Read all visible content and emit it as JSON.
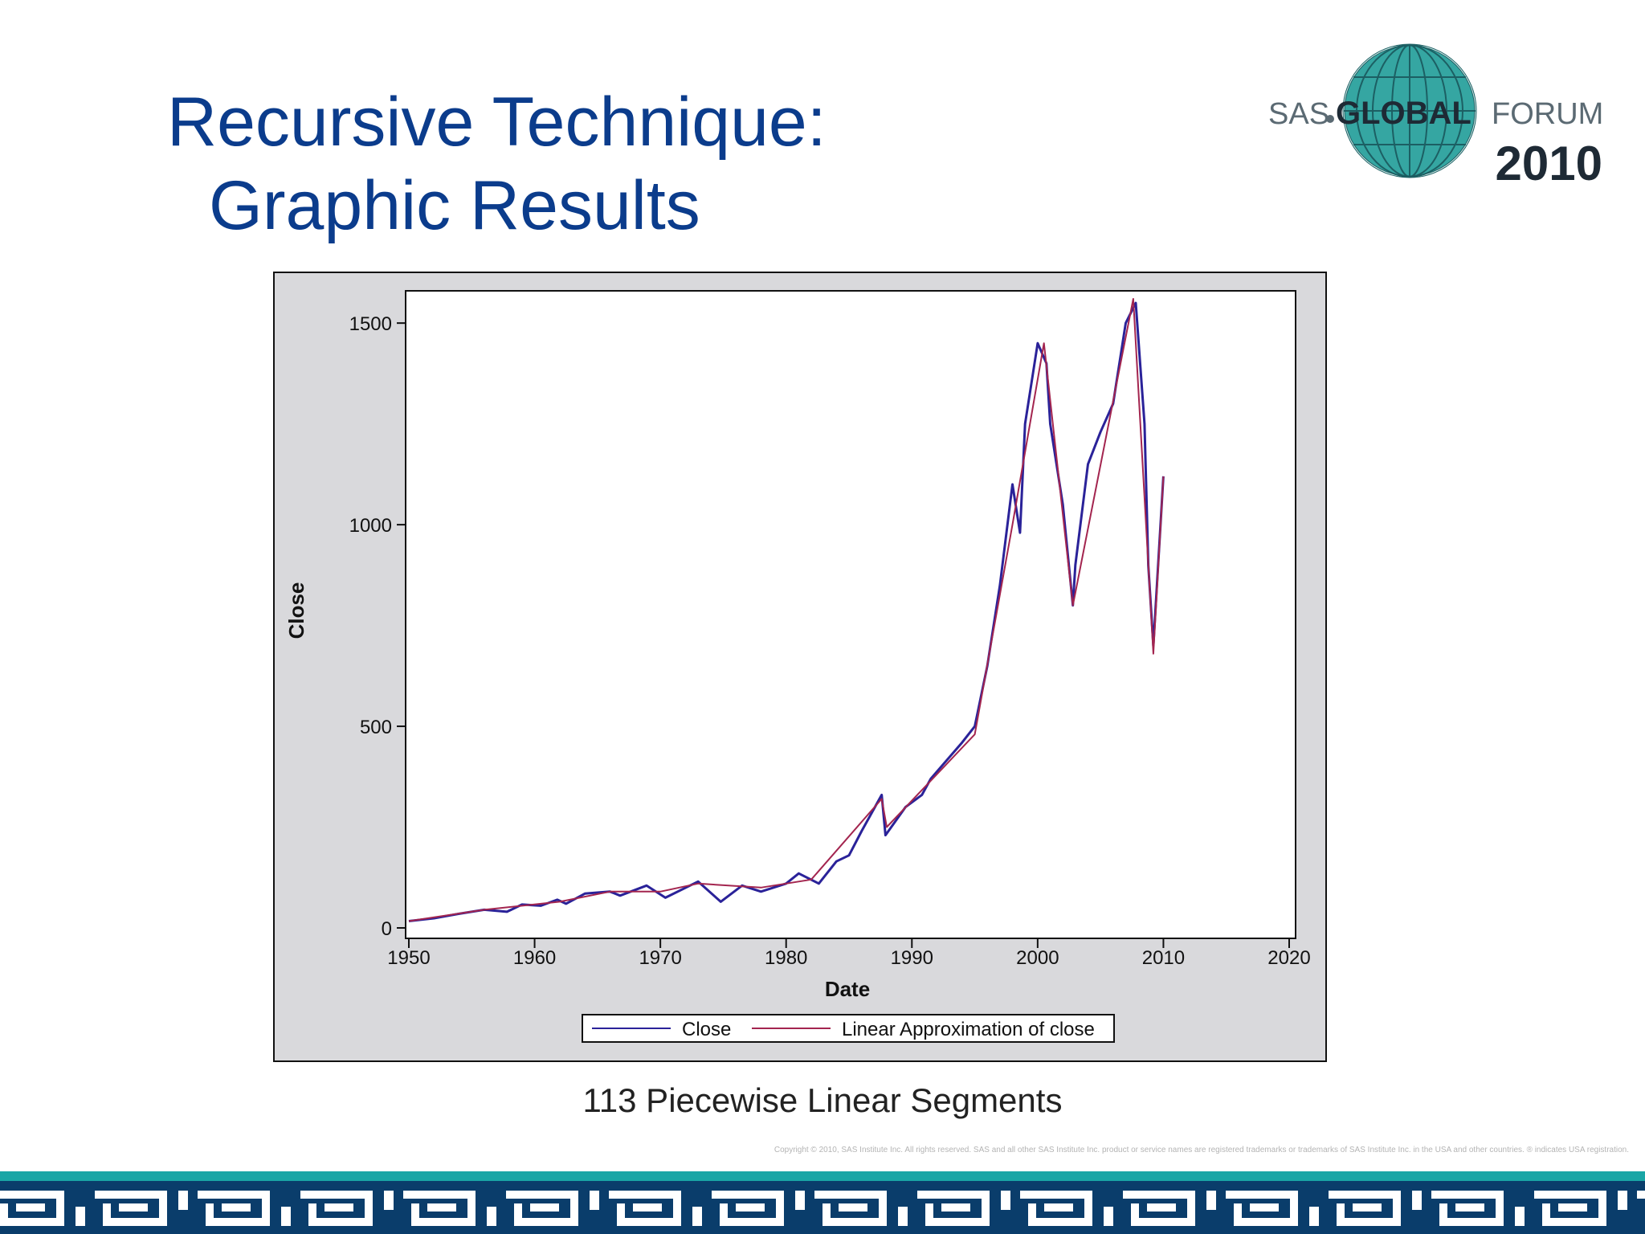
{
  "slide": {
    "title_line1": "Recursive Technique:",
    "title_line2": "Graphic Results",
    "caption": "113 Piecewise Linear Segments",
    "copyright": "Copyright © 2010, SAS Institute Inc. All rights reserved. SAS and all other SAS Institute Inc. product or service names are registered trademarks or trademarks of SAS Institute Inc. in the USA and other countries. ® indicates USA registration."
  },
  "logo": {
    "text_sas": "SAS",
    "text_global": "GLOBAL",
    "text_forum": "FORUM",
    "year": "2010",
    "icon": "globe-icon"
  },
  "colors": {
    "title": "#0b3c8c",
    "close_series": "#2a2299",
    "approx_series": "#a3254f",
    "chart_background": "#d9d9dc",
    "footer_teal": "#1aa6a6",
    "footer_navy": "#0a3d6b"
  },
  "chart_data": {
    "type": "line",
    "xlabel": "Date",
    "ylabel": "Close",
    "xlim": [
      1950,
      2020
    ],
    "ylim": [
      0,
      1580
    ],
    "x_ticks": [
      "1950",
      "1960",
      "1970",
      "1980",
      "1990",
      "2000",
      "2010",
      "2020"
    ],
    "y_ticks": [
      "0",
      "500",
      "1000",
      "1500"
    ],
    "legend_position": "bottom",
    "grid": false,
    "series": [
      {
        "name": "Close",
        "x": [
          1950,
          1952,
          1954,
          1956,
          1957.8,
          1959,
          1960.5,
          1961.8,
          1962.5,
          1964,
          1966,
          1966.8,
          1968.9,
          1970.4,
          1973,
          1974.8,
          1976.5,
          1978,
          1980,
          1981,
          1982.6,
          1984,
          1985,
          1986,
          1987.6,
          1987.9,
          1989.5,
          1990.8,
          1991.5,
          1994,
          1995,
          1996,
          1997,
          1998,
          1998.6,
          1999,
          2000,
          2000.7,
          2001,
          2002,
          2002.8,
          2003,
          2004,
          2005,
          2006,
          2007,
          2007.8,
          2008.5,
          2008.8,
          2009.2,
          2010
        ],
        "y": [
          17,
          24,
          35,
          45,
          40,
          58,
          55,
          70,
          60,
          85,
          90,
          80,
          105,
          75,
          115,
          65,
          105,
          90,
          110,
          135,
          110,
          165,
          180,
          240,
          330,
          230,
          300,
          330,
          370,
          460,
          500,
          650,
          850,
          1100,
          980,
          1250,
          1450,
          1400,
          1250,
          1050,
          800,
          900,
          1150,
          1230,
          1300,
          1500,
          1550,
          1250,
          900,
          700,
          1120
        ]
      },
      {
        "name": "Linear Approximation of close",
        "x": [
          1950,
          1956,
          1962,
          1966,
          1970,
          1973,
          1978,
          1982,
          1987.6,
          1988,
          1995,
          1998,
          2000.5,
          2002.8,
          2007.6,
          2009.2,
          2010
        ],
        "y": [
          17,
          45,
          65,
          90,
          90,
          110,
          100,
          120,
          320,
          250,
          480,
          1000,
          1450,
          800,
          1560,
          680,
          1120
        ]
      }
    ]
  }
}
